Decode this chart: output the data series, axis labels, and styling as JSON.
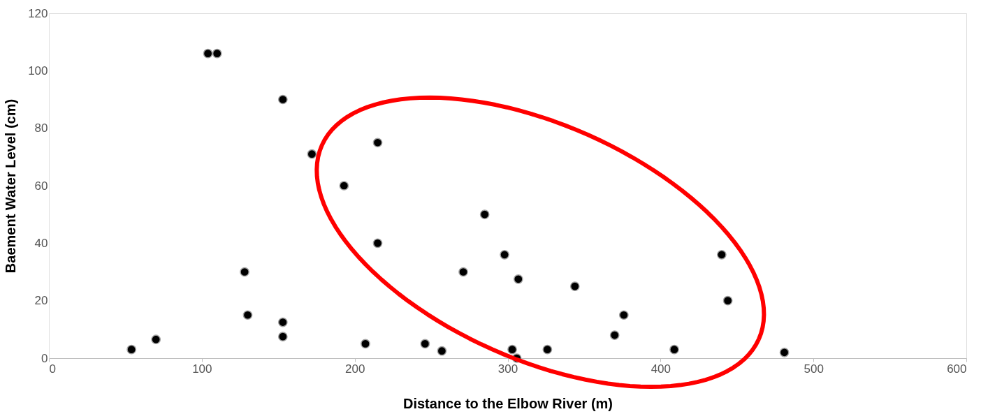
{
  "chart_data": {
    "type": "scatter",
    "xlabel": "Distance to the Elbow River (m)",
    "ylabel": "Baement Water Level (cm)",
    "x": [
      54,
      70,
      104,
      110,
      153,
      128,
      130,
      153,
      153,
      172,
      193,
      215,
      215,
      207,
      246,
      257,
      271,
      285,
      298,
      307,
      303,
      306,
      326,
      344,
      370,
      376,
      409,
      440,
      444,
      481
    ],
    "series": [
      {
        "color": "#000000",
        "values": [
          3,
          6.5,
          106,
          106,
          90,
          30,
          15,
          12.5,
          7.5,
          71,
          60,
          75,
          40,
          5,
          5,
          2.5,
          30,
          50,
          36,
          27.5,
          3,
          0,
          3,
          25,
          8,
          15,
          3,
          36,
          20,
          2
        ]
      }
    ],
    "xlim": [
      0,
      600
    ],
    "xticks": [
      0,
      100,
      200,
      300,
      400,
      500,
      600
    ],
    "ylim": [
      0,
      120
    ],
    "yticks": [
      0,
      20,
      40,
      60,
      80,
      100,
      120
    ],
    "grid": false,
    "legend": false,
    "marker": "circle"
  }
}
